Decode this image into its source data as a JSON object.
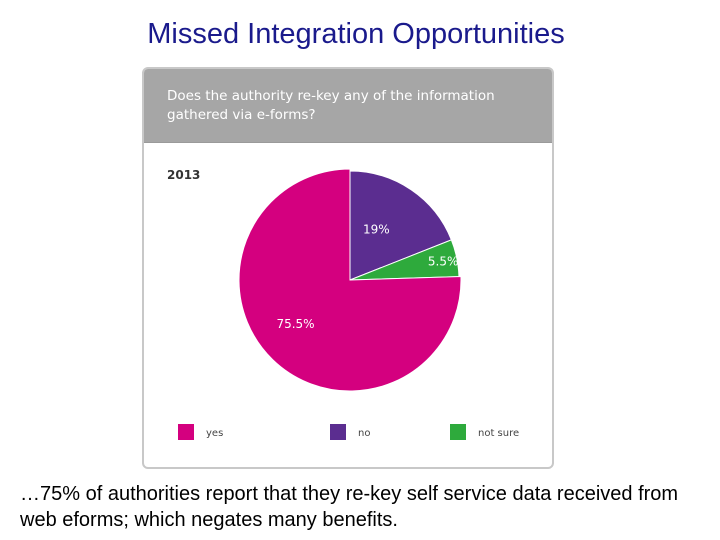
{
  "slide": {
    "title": "Missed Integration Opportunities",
    "note": "…75% of authorities report that they re-key self service data received from web eforms; which negates many benefits."
  },
  "chart_data": {
    "type": "pie",
    "title": "Does the authority re-key any of the information gathered via e-forms?",
    "subtitle": "2013",
    "categories": [
      "yes",
      "no",
      "not sure"
    ],
    "values": [
      75.5,
      19,
      5.5
    ],
    "labels": [
      "75.5%",
      "19%",
      "5.5%"
    ],
    "colors": [
      "#d4007f",
      "#5b2d90",
      "#2eaa3c"
    ],
    "legend_position": "bottom"
  }
}
